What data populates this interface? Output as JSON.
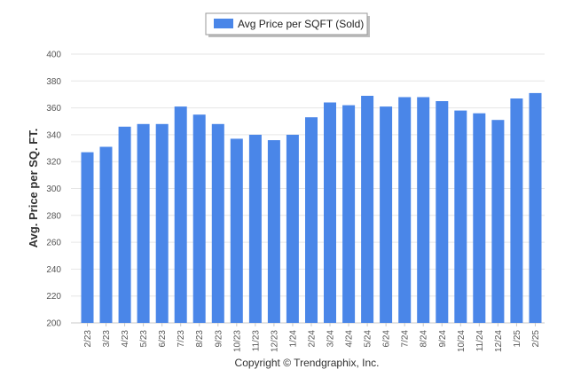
{
  "chart_data": {
    "type": "bar",
    "title": "",
    "xlabel": "",
    "ylabel": "Avg. Price per SQ. FT.",
    "ylim": [
      200,
      400
    ],
    "yticks": [
      200,
      220,
      240,
      260,
      280,
      300,
      320,
      340,
      360,
      380,
      400
    ],
    "grid": true,
    "legend_position": "top-center",
    "bar_color": "#4a86e8",
    "categories": [
      "2/23",
      "3/23",
      "4/23",
      "5/23",
      "6/23",
      "7/23",
      "8/23",
      "9/23",
      "10/23",
      "11/23",
      "12/23",
      "1/24",
      "2/24",
      "3/24",
      "4/24",
      "5/24",
      "6/24",
      "7/24",
      "8/24",
      "9/24",
      "10/24",
      "11/24",
      "12/24",
      "1/25",
      "2/25"
    ],
    "series": [
      {
        "name": "Avg Price per SQFT (Sold)",
        "values": [
          327,
          331,
          346,
          348,
          348,
          361,
          355,
          348,
          337,
          340,
          336,
          340,
          353,
          364,
          362,
          369,
          361,
          368,
          368,
          365,
          358,
          356,
          351,
          367,
          371
        ]
      }
    ]
  },
  "footer": {
    "credit": "Copyright © Trendgraphix, Inc."
  }
}
